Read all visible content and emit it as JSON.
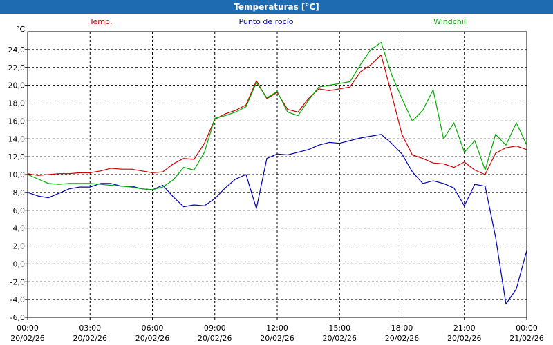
{
  "window": {
    "title": "Temperaturas [°C]"
  },
  "colors": {
    "temp": "#cc0000",
    "dew": "#0000bb",
    "wind": "#00aa00",
    "titlebar": "#1f6bb1"
  },
  "chart_data": {
    "type": "line",
    "title": "Temperaturas [°C]",
    "ylabel": "°C",
    "ylim": [
      -6,
      26
    ],
    "yticks": [
      "-6,0",
      "-4,0",
      "-2,0",
      "0,0",
      "2,0",
      "4,0",
      "6,0",
      "8,0",
      "10,0",
      "12,0",
      "14,0",
      "16,0",
      "18,0",
      "20,0",
      "22,0",
      "24,0"
    ],
    "xlim": [
      0,
      24
    ],
    "xticks": [
      {
        "time": "00:00",
        "date": "20/02/26"
      },
      {
        "time": "03:00",
        "date": "20/02/26"
      },
      {
        "time": "06:00",
        "date": "20/02/26"
      },
      {
        "time": "09:00",
        "date": "20/02/26"
      },
      {
        "time": "12:00",
        "date": "20/02/26"
      },
      {
        "time": "15:00",
        "date": "20/02/26"
      },
      {
        "time": "18:00",
        "date": "20/02/26"
      },
      {
        "time": "21:00",
        "date": "20/02/26"
      },
      {
        "time": "00:00",
        "date": "21/02/26"
      }
    ],
    "grid": true,
    "legend_position": "top",
    "series": [
      {
        "name": "Temp.",
        "x": [
          0,
          0.5,
          1,
          1.5,
          2,
          2.5,
          3,
          3.5,
          4,
          4.5,
          5,
          5.5,
          6,
          6.5,
          7,
          7.5,
          8,
          8.5,
          9,
          9.5,
          10,
          10.5,
          11,
          11.5,
          12,
          12.5,
          13,
          13.5,
          14,
          14.5,
          15,
          15.5,
          16,
          16.5,
          17,
          17.5,
          18,
          18.5,
          19,
          19.5,
          20,
          20.5,
          21,
          21.5,
          22,
          22.5,
          23,
          23.5,
          24
        ],
        "values": [
          10.1,
          9.9,
          10.0,
          10.1,
          10.1,
          10.2,
          10.2,
          10.4,
          10.7,
          10.6,
          10.6,
          10.4,
          10.2,
          10.3,
          11.2,
          11.8,
          11.7,
          13.5,
          16.2,
          16.8,
          17.2,
          17.8,
          20.5,
          18.5,
          19.2,
          17.3,
          17.0,
          18.5,
          19.6,
          19.4,
          19.6,
          19.8,
          21.5,
          22.3,
          23.4,
          19.0,
          14.5,
          12.2,
          11.8,
          11.3,
          11.2,
          10.8,
          11.4,
          10.5,
          10.0,
          12.4,
          13.0,
          13.2,
          12.8
        ]
      },
      {
        "name": "Punto de rocío",
        "x": [
          0,
          0.5,
          1,
          1.5,
          2,
          2.5,
          3,
          3.5,
          4,
          4.5,
          5,
          5.5,
          6,
          6.5,
          7,
          7.5,
          8,
          8.5,
          9,
          9.5,
          10,
          10.5,
          11,
          11.5,
          12,
          12.5,
          13,
          13.5,
          14,
          14.5,
          15,
          15.5,
          16,
          16.5,
          17,
          17.5,
          18,
          18.5,
          19,
          19.5,
          20,
          20.5,
          21,
          21.5,
          22,
          22.5,
          23,
          23.5,
          24
        ],
        "values": [
          8.0,
          7.6,
          7.4,
          7.9,
          8.4,
          8.6,
          8.6,
          9.0,
          9.0,
          8.7,
          8.7,
          8.4,
          8.3,
          8.8,
          7.5,
          6.4,
          6.6,
          6.5,
          7.3,
          8.5,
          9.5,
          10.0,
          6.2,
          11.8,
          12.3,
          12.2,
          12.5,
          12.8,
          13.3,
          13.6,
          13.5,
          13.8,
          14.1,
          14.3,
          14.5,
          13.5,
          12.3,
          10.3,
          9.0,
          9.3,
          9.0,
          8.5,
          6.5,
          8.9,
          8.7,
          3.0,
          -4.5,
          -2.8,
          1.5
        ]
      },
      {
        "name": "Windchill",
        "x": [
          0,
          0.5,
          1,
          1.5,
          2,
          2.5,
          3,
          3.5,
          4,
          4.5,
          5,
          5.5,
          6,
          6.5,
          7,
          7.5,
          8,
          8.5,
          9,
          9.5,
          10,
          10.5,
          11,
          11.5,
          12,
          12.5,
          13,
          13.5,
          14,
          14.5,
          15,
          15.5,
          16,
          16.5,
          17,
          17.5,
          18,
          18.5,
          19,
          19.5,
          20,
          20.5,
          21,
          21.5,
          22,
          22.5,
          23,
          23.5,
          24
        ],
        "values": [
          10.0,
          9.5,
          9.0,
          8.9,
          9.0,
          9.0,
          9.0,
          8.9,
          8.8,
          8.7,
          8.6,
          8.4,
          8.3,
          8.6,
          9.4,
          10.8,
          10.5,
          12.5,
          16.3,
          16.6,
          17.0,
          17.6,
          20.3,
          18.6,
          19.3,
          17.0,
          16.6,
          18.3,
          19.8,
          20.0,
          20.2,
          20.4,
          22.3,
          24.0,
          24.8,
          21.2,
          18.5,
          16.0,
          17.2,
          19.5,
          14.0,
          15.8,
          12.5,
          13.8,
          10.5,
          14.5,
          13.3,
          15.8,
          13.3
        ]
      }
    ]
  }
}
